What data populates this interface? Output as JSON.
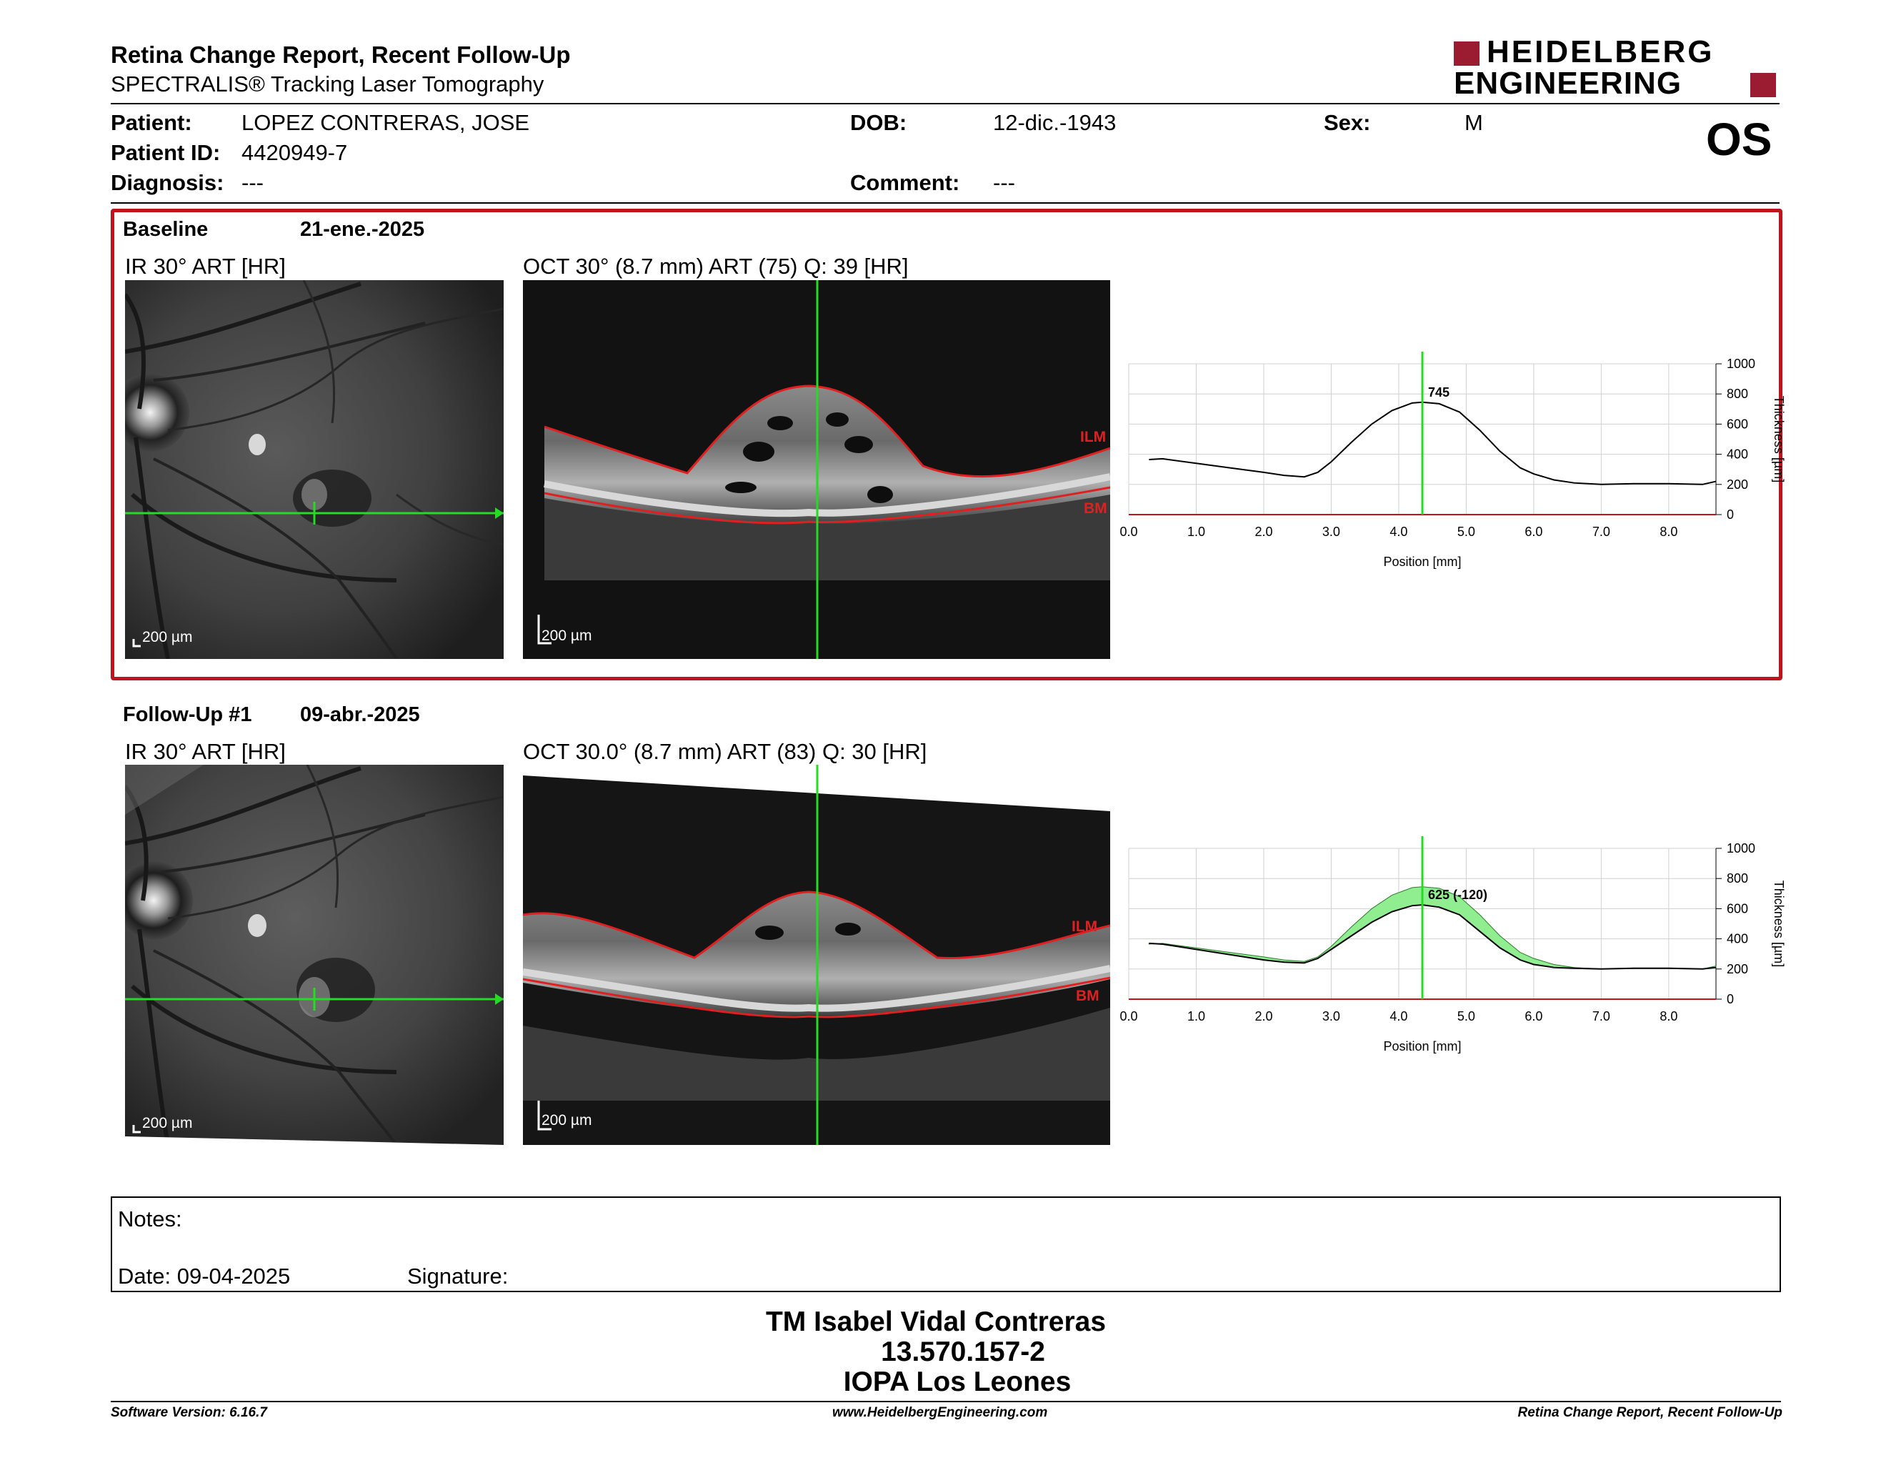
{
  "header": {
    "title": "Retina Change Report, Recent Follow-Up",
    "subtitle": "SPECTRALIS® Tracking Laser Tomography",
    "logo_line1": "HEIDELBERG",
    "logo_line2": "ENGINEERING",
    "eye": "OS"
  },
  "patient": {
    "patient_label": "Patient:",
    "patient_value": "LOPEZ CONTRERAS, JOSE",
    "id_label": "Patient ID:",
    "id_value": "4420949-7",
    "diagnosis_label": "Diagnosis:",
    "diagnosis_value": "---",
    "dob_label": "DOB:",
    "dob_value": "12-dic.-1943",
    "comment_label": "Comment:",
    "comment_value": "---",
    "sex_label": "Sex:",
    "sex_value": "M"
  },
  "baseline": {
    "label": "Baseline",
    "date": "21-ene.-2025",
    "ir_title": "IR 30° ART [HR]",
    "oct_title": "OCT 30° (8.7 mm) ART (75) Q: 39 [HR]",
    "ir_scale": "200 µm",
    "oct_scale": "200 µm",
    "ilm_label": "ILM",
    "bm_label": "BM"
  },
  "followup": {
    "label": "Follow-Up #1",
    "date": "09-abr.-2025",
    "ir_title": "IR 30° ART [HR]",
    "oct_title": "OCT 30.0° (8.7 mm) ART (83) Q: 30 [HR]",
    "ir_scale": "200 µm",
    "oct_scale": "200 µm",
    "ilm_label": "ILM",
    "bm_label": "BM"
  },
  "chart_data": [
    {
      "type": "line",
      "xlabel": "Position [mm]",
      "ylabel": "Thickness [µm]",
      "xlim": [
        0,
        8.7
      ],
      "ylim": [
        0,
        1000
      ],
      "xticks": [
        "0.0",
        "1.0",
        "2.0",
        "3.0",
        "4.0",
        "5.0",
        "6.0",
        "7.0",
        "8.0"
      ],
      "yticks": [
        "0",
        "200",
        "400",
        "600",
        "800",
        "1000"
      ],
      "cursor_x": 4.35,
      "cursor_label": "745",
      "series": [
        {
          "x": [
            0.3,
            0.5,
            1.0,
            1.5,
            2.0,
            2.3,
            2.6,
            2.8,
            3.0,
            3.3,
            3.6,
            3.9,
            4.2,
            4.35,
            4.6,
            4.9,
            5.2,
            5.5,
            5.8,
            6.0,
            6.3,
            6.6,
            7.0,
            7.5,
            8.0,
            8.5,
            8.7
          ],
          "y": [
            365,
            370,
            340,
            310,
            280,
            260,
            250,
            280,
            350,
            480,
            600,
            690,
            740,
            745,
            735,
            680,
            560,
            420,
            310,
            270,
            230,
            210,
            200,
            205,
            205,
            200,
            220
          ]
        }
      ]
    },
    {
      "type": "area",
      "xlabel": "Position [mm]",
      "ylabel": "Thickness [µm]",
      "xlim": [
        0,
        8.7
      ],
      "ylim": [
        0,
        1000
      ],
      "xticks": [
        "0.0",
        "1.0",
        "2.0",
        "3.0",
        "4.0",
        "5.0",
        "6.0",
        "7.0",
        "8.0"
      ],
      "yticks": [
        "0",
        "200",
        "400",
        "600",
        "800",
        "1000"
      ],
      "cursor_x": 4.35,
      "cursor_label": "625 (-120)",
      "series": [
        {
          "name": "Follow-Up #1",
          "x": [
            0.3,
            0.5,
            1.0,
            1.5,
            2.0,
            2.3,
            2.6,
            2.8,
            3.0,
            3.3,
            3.6,
            3.9,
            4.2,
            4.35,
            4.6,
            4.9,
            5.2,
            5.5,
            5.8,
            6.0,
            6.3,
            6.6,
            7.0,
            7.5,
            8.0,
            8.5,
            8.7
          ],
          "y": [
            370,
            365,
            330,
            295,
            260,
            245,
            240,
            270,
            330,
            420,
            510,
            580,
            620,
            625,
            610,
            560,
            450,
            340,
            260,
            230,
            210,
            205,
            200,
            205,
            205,
            200,
            210
          ]
        },
        {
          "name": "Baseline",
          "x": [
            0.3,
            0.5,
            1.0,
            1.5,
            2.0,
            2.3,
            2.6,
            2.8,
            3.0,
            3.3,
            3.6,
            3.9,
            4.2,
            4.35,
            4.6,
            4.9,
            5.2,
            5.5,
            5.8,
            6.0,
            6.3,
            6.6,
            7.0,
            7.5,
            8.0,
            8.5,
            8.7
          ],
          "y": [
            365,
            370,
            340,
            310,
            280,
            260,
            250,
            280,
            350,
            480,
            600,
            690,
            740,
            745,
            735,
            680,
            560,
            420,
            310,
            270,
            230,
            210,
            200,
            205,
            205,
            200,
            220
          ]
        }
      ],
      "fill_color": "#90EE90",
      "cursor_color": "#22DD22"
    }
  ],
  "notes": {
    "notes_label": "Notes:",
    "date_label": "Date: 09-04-2025",
    "signature_label": "Signature:"
  },
  "signature_block": {
    "line1": "TM Isabel Vidal Contreras",
    "line2": "13.570.157-2",
    "line3": "IOPA Los Leones"
  },
  "footer": {
    "left": "Software Version: 6.16.7",
    "center": "www.HeidelbergEngineering.com",
    "right": "Retina Change Report, Recent Follow-Up"
  },
  "colors": {
    "brand": "#9B1B30",
    "frame": "#C0141C",
    "green": "#22DD22",
    "red_line": "#E02020"
  }
}
